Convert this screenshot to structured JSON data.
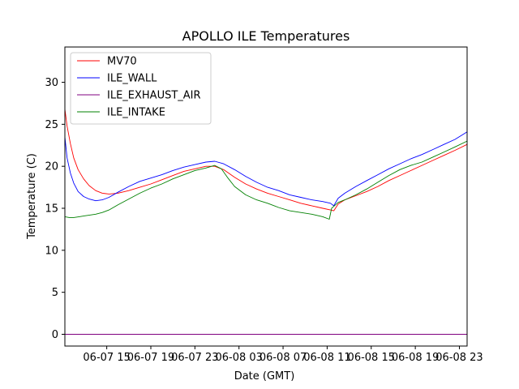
{
  "chart_data": {
    "type": "line",
    "title": "APOLLO ILE Temperatures",
    "xlabel": "Date (GMT)",
    "ylabel": "Temperature (C)",
    "x_unit": "hours since 06-07 00:00 GMT",
    "xlim": [
      11.2,
      47.7
    ],
    "ylim": [
      -1.4,
      34.2
    ],
    "xticks": [
      {
        "x": 15,
        "label": "06-07 15"
      },
      {
        "x": 19,
        "label": "06-07 19"
      },
      {
        "x": 23,
        "label": "06-07 23"
      },
      {
        "x": 27,
        "label": "06-08 03"
      },
      {
        "x": 31,
        "label": "06-08 07"
      },
      {
        "x": 35,
        "label": "06-08 11"
      },
      {
        "x": 39,
        "label": "06-08 15"
      },
      {
        "x": 43,
        "label": "06-08 19"
      },
      {
        "x": 47,
        "label": "06-08 23"
      }
    ],
    "yticks": [
      {
        "y": 0,
        "label": "0"
      },
      {
        "y": 5,
        "label": "5"
      },
      {
        "y": 10,
        "label": "10"
      },
      {
        "y": 15,
        "label": "15"
      },
      {
        "y": 20,
        "label": "20"
      },
      {
        "y": 25,
        "label": "25"
      },
      {
        "y": 30,
        "label": "30"
      }
    ],
    "legend_position": "top-left",
    "series": [
      {
        "name": "MV70",
        "color": "#ff0000",
        "x": [
          11.2,
          11.4,
          11.7,
          12.0,
          12.4,
          12.9,
          13.4,
          14.0,
          14.6,
          15.2,
          16.0,
          17.0,
          18.0,
          19.0,
          20.0,
          21.0,
          22.0,
          23.0,
          24.0,
          24.8,
          25.6,
          26.6,
          27.6,
          28.6,
          29.6,
          30.6,
          31.6,
          32.6,
          33.6,
          34.6,
          35.3,
          35.6,
          36.0,
          36.6,
          37.6,
          38.6,
          39.6,
          40.6,
          41.6,
          42.6,
          43.6,
          44.6,
          45.6,
          46.6,
          47.7
        ],
        "values": [
          26.8,
          24.8,
          22.7,
          21.0,
          19.6,
          18.5,
          17.7,
          17.1,
          16.8,
          16.7,
          16.8,
          17.1,
          17.5,
          17.9,
          18.4,
          18.9,
          19.4,
          19.7,
          20.0,
          20.0,
          19.6,
          18.7,
          17.9,
          17.3,
          16.8,
          16.4,
          16.0,
          15.6,
          15.3,
          15.0,
          14.8,
          14.7,
          15.5,
          16.0,
          16.5,
          17.0,
          17.6,
          18.3,
          18.9,
          19.5,
          20.1,
          20.7,
          21.3,
          21.9,
          22.6
        ]
      },
      {
        "name": "ILE_WALL",
        "color": "#0000ff",
        "x": [
          11.2,
          11.4,
          11.7,
          12.0,
          12.4,
          12.9,
          13.4,
          14.0,
          14.6,
          15.2,
          16.0,
          17.0,
          18.0,
          19.0,
          20.0,
          21.0,
          22.0,
          23.0,
          24.0,
          24.8,
          25.6,
          26.6,
          27.6,
          28.6,
          29.6,
          30.6,
          31.6,
          32.6,
          33.6,
          34.6,
          35.3,
          35.6,
          36.0,
          36.6,
          37.6,
          38.6,
          39.6,
          40.6,
          41.6,
          42.6,
          43.6,
          44.6,
          45.6,
          46.6,
          47.7
        ],
        "values": [
          23.5,
          21.0,
          19.2,
          18.0,
          17.0,
          16.4,
          16.1,
          15.9,
          16.0,
          16.3,
          16.9,
          17.6,
          18.2,
          18.6,
          19.0,
          19.5,
          19.9,
          20.2,
          20.5,
          20.6,
          20.3,
          19.6,
          18.8,
          18.1,
          17.5,
          17.1,
          16.6,
          16.3,
          16.0,
          15.8,
          15.6,
          15.3,
          16.2,
          16.8,
          17.6,
          18.3,
          19.0,
          19.7,
          20.3,
          20.9,
          21.4,
          22.0,
          22.6,
          23.2,
          24.1
        ]
      },
      {
        "name": "ILE_EXHAUST_AIR",
        "color": "#800080",
        "x": [
          11.2,
          47.7
        ],
        "values": [
          0.0,
          0.0
        ]
      },
      {
        "name": "ILE_INTAKE",
        "color": "#008000",
        "x": [
          11.2,
          11.6,
          12.0,
          12.5,
          13.0,
          13.5,
          14.0,
          14.6,
          15.2,
          16.0,
          17.0,
          18.0,
          19.0,
          20.0,
          21.0,
          22.0,
          23.0,
          24.0,
          24.8,
          25.4,
          26.0,
          26.6,
          27.6,
          28.6,
          29.6,
          30.6,
          31.6,
          32.6,
          33.6,
          34.6,
          35.2,
          35.4,
          36.0,
          36.6,
          37.6,
          38.6,
          39.6,
          40.6,
          41.6,
          42.6,
          43.6,
          44.6,
          45.6,
          46.6,
          47.7
        ],
        "values": [
          14.0,
          13.9,
          13.9,
          14.0,
          14.1,
          14.2,
          14.3,
          14.5,
          14.8,
          15.4,
          16.1,
          16.8,
          17.4,
          17.9,
          18.5,
          19.0,
          19.5,
          19.8,
          20.1,
          19.7,
          18.6,
          17.6,
          16.6,
          16.0,
          15.6,
          15.1,
          14.7,
          14.5,
          14.3,
          14.0,
          13.7,
          15.0,
          15.7,
          16.0,
          16.6,
          17.3,
          18.1,
          18.9,
          19.6,
          20.1,
          20.5,
          21.1,
          21.7,
          22.3,
          23.0
        ]
      }
    ]
  }
}
